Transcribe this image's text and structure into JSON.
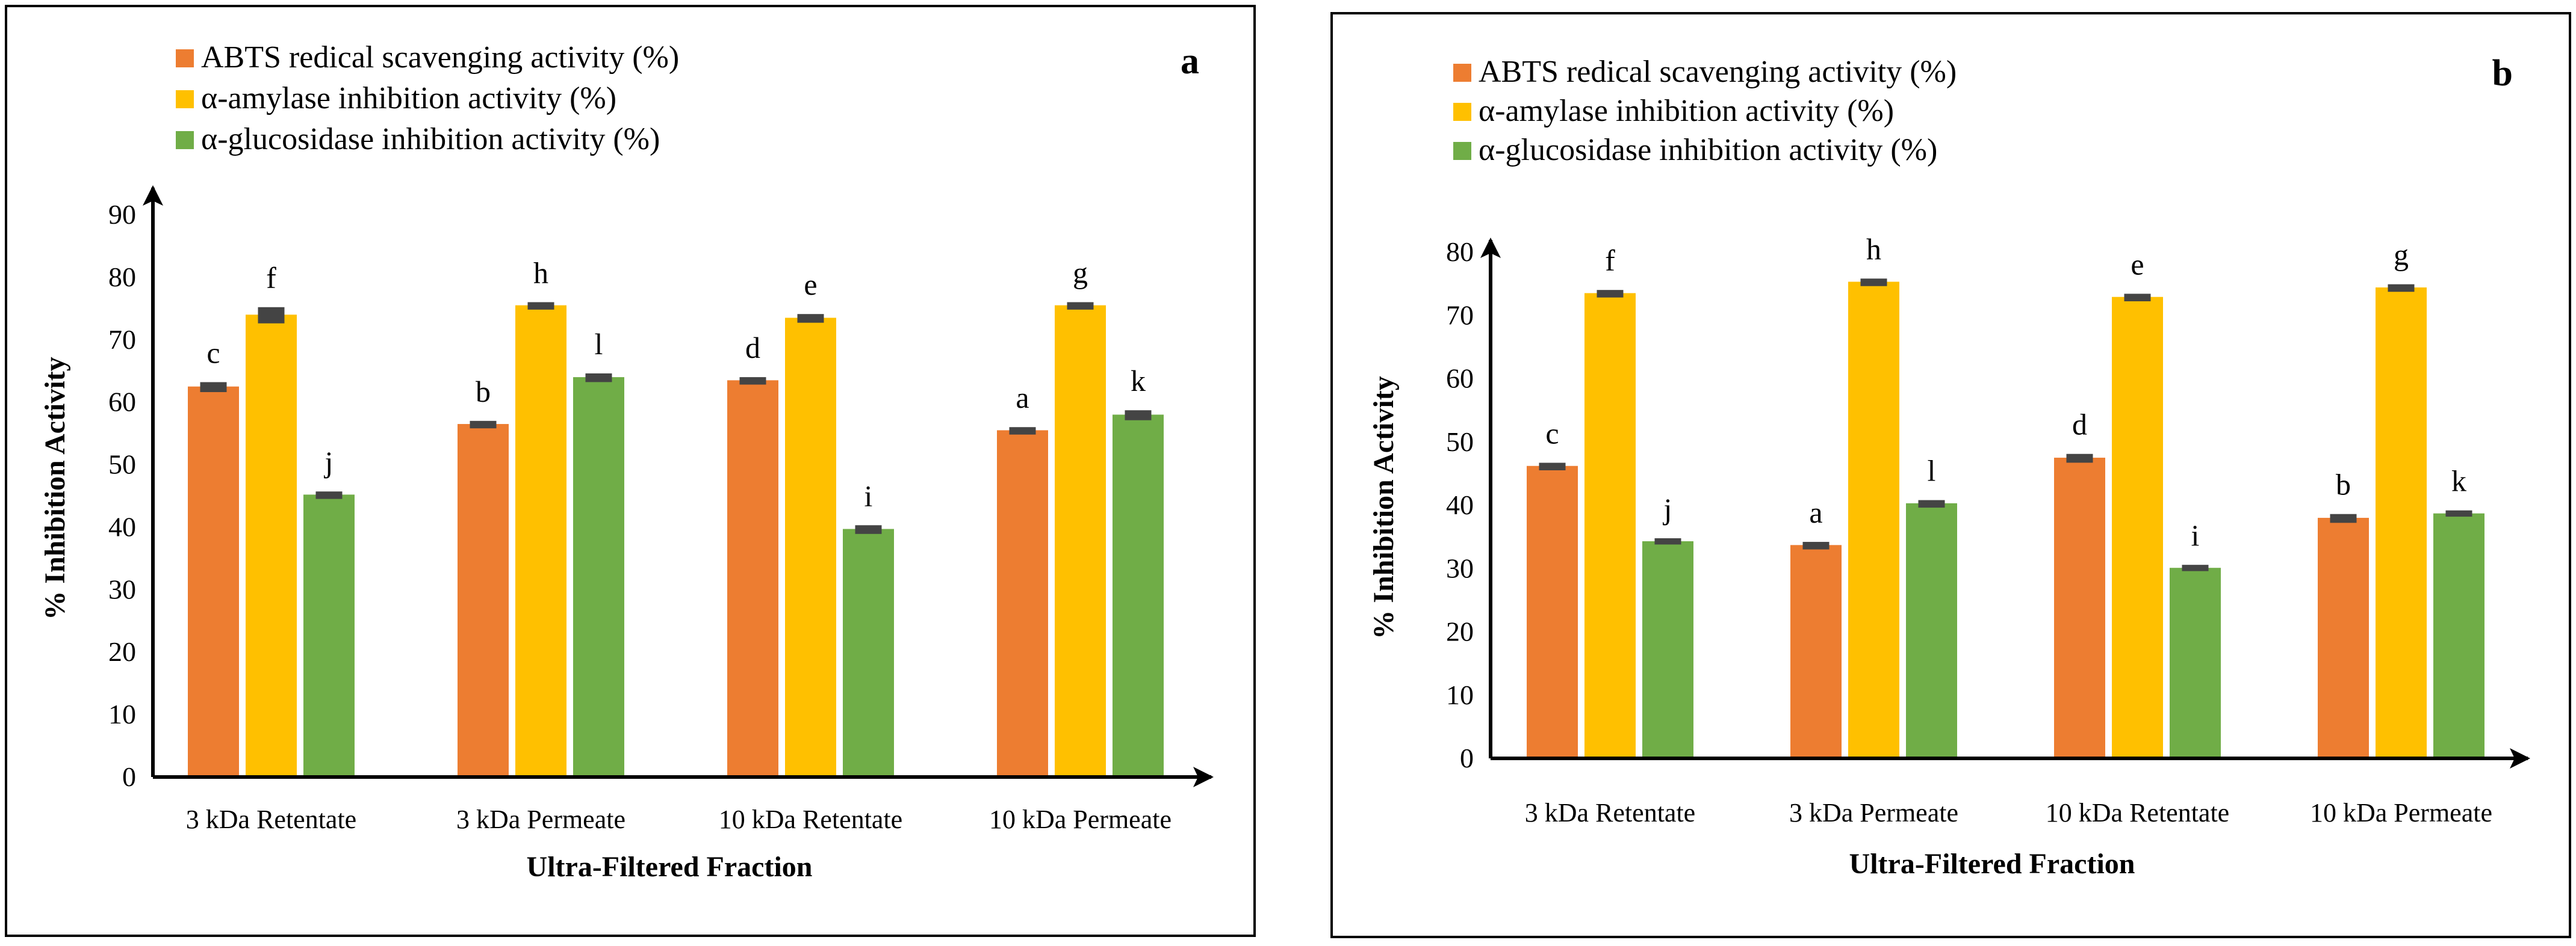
{
  "chart_data": [
    {
      "type": "bar",
      "panel_label": "a",
      "categories": [
        "3 kDa Retentate",
        "3 kDa Permeate",
        "10 kDa Retentate",
        "10 kDa Permeate"
      ],
      "series": [
        {
          "name": "ABTS redical scavenging activity (%)",
          "color": "#ED7D31",
          "values": [
            62.5,
            56.5,
            63.5,
            55.5
          ],
          "errors": [
            0.7,
            0.5,
            0.5,
            0.5
          ],
          "letters": [
            "c",
            "b",
            "d",
            "a"
          ]
        },
        {
          "name": "α-amylase inhibition  activity (%)",
          "color": "#FFC000",
          "values": [
            74,
            75.5,
            73.5,
            75.5
          ],
          "errors": [
            1.2,
            0.5,
            0.6,
            0.5
          ],
          "letters": [
            "f",
            "h",
            "e",
            "g"
          ]
        },
        {
          "name": "α-glucosidase inhibition  activity (%)",
          "color": "#70AD47",
          "values": [
            45.2,
            64,
            39.7,
            58
          ],
          "errors": [
            0.5,
            0.6,
            0.6,
            0.7
          ],
          "letters": [
            "j",
            "l",
            "i",
            "k"
          ]
        }
      ],
      "ylim": [
        0,
        90
      ],
      "yticks": [
        "0",
        "10",
        "20",
        "30",
        "40",
        "50",
        "60",
        "70",
        "80",
        "90"
      ],
      "xlabel": "Ultra-Filtered Fraction",
      "ylabel": "% Inhibition Activity",
      "legend": "top-left"
    },
    {
      "type": "bar",
      "panel_label": "b",
      "categories": [
        "3 kDa Retentate",
        "3 kDa Permeate",
        "10 kDa Retentate",
        "10 kDa Permeate"
      ],
      "series": [
        {
          "name": "ABTS redical scavenging activity (%)",
          "color": "#ED7D31",
          "values": [
            46.2,
            33.7,
            47.5,
            38
          ],
          "errors": [
            0.5,
            0.5,
            0.6,
            0.6
          ],
          "letters": [
            "c",
            "a",
            "d",
            "b"
          ]
        },
        {
          "name": "α-amylase inhibition  activity (%)",
          "color": "#FFC000",
          "values": [
            73.5,
            75.3,
            72.9,
            74.4
          ],
          "errors": [
            0.5,
            0.5,
            0.5,
            0.5
          ],
          "letters": [
            "f",
            "h",
            "e",
            "g"
          ]
        },
        {
          "name": "α-glucosidase inhibition  activity (%)",
          "color": "#70AD47",
          "values": [
            34.3,
            40.3,
            30.1,
            38.7
          ],
          "errors": [
            0.4,
            0.5,
            0.4,
            0.4
          ],
          "letters": [
            "j",
            "l",
            "i",
            "k"
          ]
        }
      ],
      "ylim": [
        0,
        80
      ],
      "yticks": [
        "0",
        "10",
        "20",
        "30",
        "40",
        "50",
        "60",
        "70",
        "80"
      ],
      "xlabel": "Ultra-Filtered Fraction",
      "ylabel": "% Inhibition Activity",
      "legend": "top-left"
    }
  ]
}
